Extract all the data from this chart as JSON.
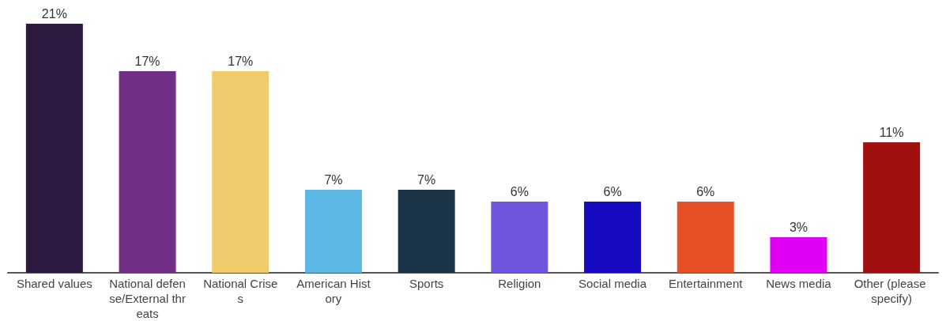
{
  "chart_data": {
    "type": "bar",
    "categories": [
      "Shared values",
      "National defense/External threats",
      "National Crises",
      "American History",
      "Sports",
      "Religion",
      "Social media",
      "Entertainment",
      "News media",
      "Other (please specify)"
    ],
    "values": [
      21,
      17,
      17,
      7,
      7,
      6,
      6,
      6,
      3,
      11
    ],
    "value_labels": [
      "21%",
      "17%",
      "17%",
      "7%",
      "7%",
      "6%",
      "6%",
      "6%",
      "3%",
      "11%"
    ],
    "colors": [
      "#2e1a40",
      "#722f86",
      "#efcb6b",
      "#5db7e4",
      "#1b3447",
      "#7055dd",
      "#170ac0",
      "#e55026",
      "#e100f6",
      "#a20f0f"
    ],
    "grid": false
  }
}
